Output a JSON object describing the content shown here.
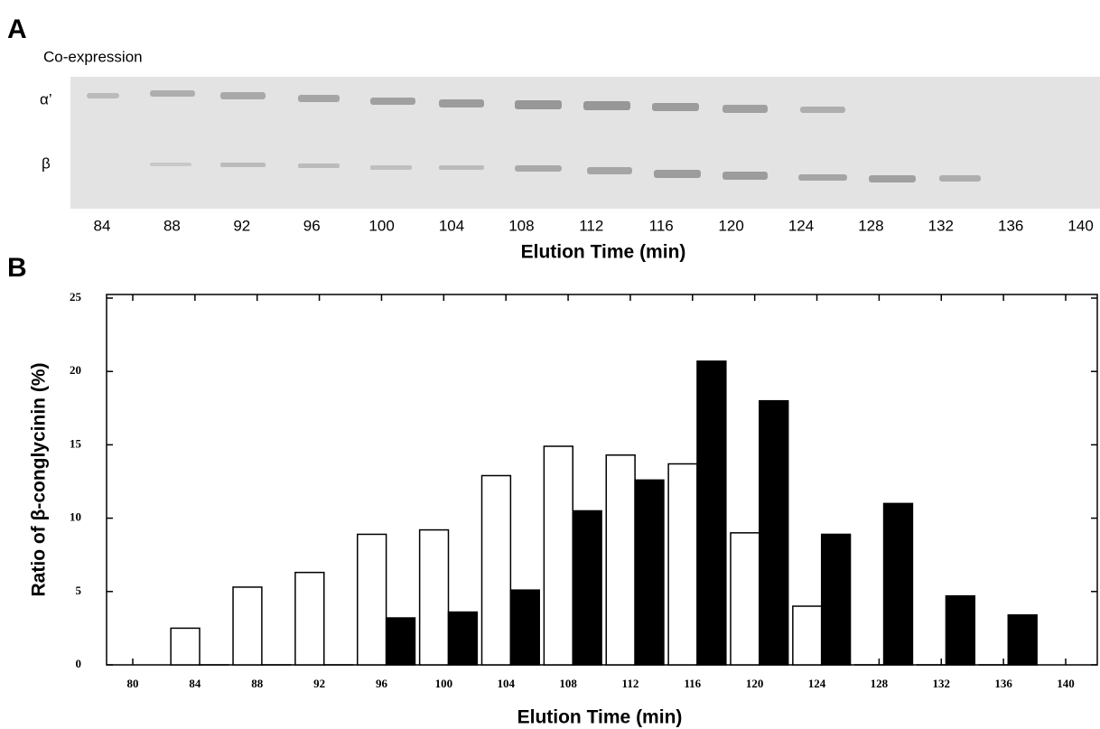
{
  "panel_a": {
    "label": "A",
    "title": "Co-expression",
    "band_labels": [
      "α’",
      "β"
    ],
    "lanes": [
      84,
      88,
      92,
      96,
      100,
      104,
      108,
      112,
      116,
      120,
      124,
      128,
      132,
      136,
      140
    ],
    "xlabel": "Elution Time (min)"
  },
  "chart_data": {
    "type": "bar",
    "panel_label": "B",
    "x": [
      84,
      88,
      92,
      96,
      100,
      104,
      108,
      112,
      116,
      120,
      124,
      128,
      132,
      136
    ],
    "series": [
      {
        "color": "#ffffff",
        "values": [
          2.5,
          5.3,
          6.3,
          8.9,
          9.2,
          12.9,
          14.9,
          14.3,
          13.7,
          9.0,
          4.0,
          0,
          0,
          0
        ]
      },
      {
        "color": "#000000",
        "values": [
          0,
          0,
          0,
          3.2,
          3.6,
          5.1,
          10.5,
          12.6,
          20.7,
          18.0,
          8.9,
          11.0,
          4.7,
          3.4
        ]
      }
    ],
    "xlim": [
      80,
      140
    ],
    "xticks": [
      80,
      84,
      88,
      92,
      96,
      100,
      104,
      108,
      112,
      116,
      120,
      124,
      128,
      132,
      136,
      140
    ],
    "ylim": [
      0,
      25
    ],
    "yticks": [
      0,
      5,
      10,
      15,
      20,
      25
    ],
    "xlabel": "Elution Time (min)",
    "ylabel": "Ratio of β-conglycinin (%)"
  }
}
